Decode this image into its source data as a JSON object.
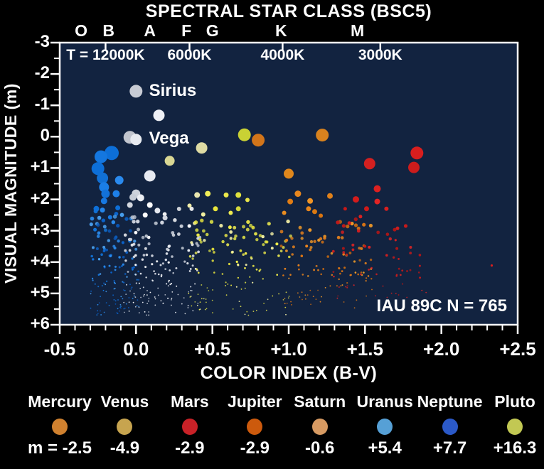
{
  "figure": {
    "title": "SPECTRAL STAR CLASS (BSC5)",
    "x_axis_label": "COLOR INDEX (B-V)",
    "y_axis_label": "VISUAL MAGNITUDE (m)"
  },
  "colors": {
    "background": "#000000",
    "plot_background": "#122340",
    "axis": "#ffffff",
    "text": "#ffffff"
  },
  "axes": {
    "x": {
      "min": -0.5,
      "max": 2.5,
      "major_step": 0.5,
      "minor_step": 0.1,
      "tick_labels": [
        {
          "label": "-0.5",
          "v": -0.5
        },
        {
          "label": "0.0",
          "v": 0.0
        },
        {
          "label": "+0.5",
          "v": 0.5
        },
        {
          "label": "+1.0",
          "v": 1.0
        },
        {
          "label": "+1.5",
          "v": 1.5
        },
        {
          "label": "+2.0",
          "v": 2.0
        },
        {
          "label": "+2.5",
          "v": 2.5
        }
      ]
    },
    "y": {
      "min": -3,
      "max": 6,
      "major_step": 1,
      "minor_step": 0.5,
      "tick_labels": [
        {
          "label": "-3",
          "v": -3
        },
        {
          "label": "-2",
          "v": -2
        },
        {
          "label": "-1",
          "v": -1
        },
        {
          "label": "0",
          "v": 0
        },
        {
          "label": "+1",
          "v": 1
        },
        {
          "label": "+2",
          "v": 2
        },
        {
          "label": "+3",
          "v": 3
        },
        {
          "label": "+4",
          "v": 4
        },
        {
          "label": "+5",
          "v": 5
        },
        {
          "label": "+6",
          "v": 6
        }
      ]
    },
    "spectral_classes": [
      {
        "label": "O",
        "bv": -0.36
      },
      {
        "label": "B",
        "bv": -0.18
      },
      {
        "label": "A",
        "bv": 0.09
      },
      {
        "label": "F",
        "bv": 0.33
      },
      {
        "label": "G",
        "bv": 0.5
      },
      {
        "label": "K",
        "bv": 0.95
      },
      {
        "label": "M",
        "bv": 1.45
      }
    ],
    "temperature_ticks": [
      {
        "label": "T = 12000K",
        "bv": -0.2
      },
      {
        "label": "6000K",
        "bv": 0.35
      },
      {
        "label": "4000K",
        "bv": 0.96
      },
      {
        "label": "3000K",
        "bv": 1.6
      }
    ]
  },
  "annotations": [
    {
      "text": "Sirius",
      "bv": 0.085,
      "mag": -1.45,
      "align": "left"
    },
    {
      "text": "Vega",
      "bv": 0.085,
      "mag": 0.06,
      "align": "left"
    },
    {
      "text": "IAU 89C N = 765",
      "bv": 2.43,
      "mag": 5.4,
      "align": "right"
    }
  ],
  "legend": {
    "prefix": "m =",
    "planets": [
      {
        "name": "Mercury",
        "color": "#d0812f",
        "value": "-2.5"
      },
      {
        "name": "Venus",
        "color": "#c7a44f",
        "value": "-4.9"
      },
      {
        "name": "Mars",
        "color": "#c92127",
        "value": "-2.9"
      },
      {
        "name": "Jupiter",
        "color": "#cc5a0d",
        "value": "-2.9"
      },
      {
        "name": "Saturn",
        "color": "#d79a62",
        "value": "-0.6"
      },
      {
        "name": "Uranus",
        "color": "#56a0d6",
        "value": "+5.4"
      },
      {
        "name": "Neptune",
        "color": "#2b59c8",
        "value": "+7.7"
      },
      {
        "name": "Pluto",
        "color": "#c2c853",
        "value": "+16.3"
      }
    ]
  },
  "chart_data": {
    "type": "scatter",
    "title": "SPECTRAL STAR CLASS (BSC5)",
    "xlabel": "COLOR INDEX (B-V)",
    "ylabel": "VISUAL MAGNITUDE (m)",
    "xlim": [
      -0.5,
      2.5
    ],
    "ylim": [
      6,
      -3
    ],
    "catalog_note": "IAU 89C N = 765",
    "n_stars": 765,
    "named_points": [
      {
        "name": "Sirius",
        "b_v": 0.0,
        "mag": -1.45
      },
      {
        "name": "Vega",
        "b_v": 0.0,
        "mag": 0.05
      }
    ],
    "bright_stars": [
      {
        "bv": 0.0,
        "mag": -1.45,
        "r": 9,
        "c": "#c7cbd4"
      },
      {
        "bv": 0.15,
        "mag": -0.68,
        "r": 8,
        "c": "#eef0f5"
      },
      {
        "bv": -0.04,
        "mag": 0.02,
        "r": 9,
        "c": "#c2c6cf"
      },
      {
        "bv": 0.0,
        "mag": 0.09,
        "r": 8,
        "c": "#e8ebf1"
      },
      {
        "bv": -0.16,
        "mag": 0.52,
        "r": 10,
        "c": "#0d6fd8"
      },
      {
        "bv": -0.23,
        "mag": 0.64,
        "r": 9,
        "c": "#1477e0"
      },
      {
        "bv": -0.25,
        "mag": 1.02,
        "r": 9,
        "c": "#0d6fd8"
      },
      {
        "bv": -0.22,
        "mag": 1.32,
        "r": 8,
        "c": "#1170d4"
      },
      {
        "bv": -0.21,
        "mag": 1.61,
        "r": 7,
        "c": "#1a7ee6"
      },
      {
        "bv": -0.2,
        "mag": 1.82,
        "r": 6,
        "c": "#1272da"
      },
      {
        "bv": -0.11,
        "mag": 1.39,
        "r": 6,
        "c": "#2a8aee"
      },
      {
        "bv": -0.13,
        "mag": 1.82,
        "r": 5,
        "c": "#1e80e8"
      },
      {
        "bv": -0.21,
        "mag": 2.05,
        "r": 4.5,
        "c": "#1778e2"
      },
      {
        "bv": -0.26,
        "mag": 2.3,
        "r": 4,
        "c": "#0d6fd8"
      },
      {
        "bv": -0.22,
        "mag": 2.34,
        "r": 3.5,
        "c": "#2586ec"
      },
      {
        "bv": -0.17,
        "mag": 2.57,
        "r": 3,
        "c": "#1778e2"
      },
      {
        "bv": -0.12,
        "mag": 2.27,
        "r": 3.5,
        "c": "#0d6fd8"
      },
      {
        "bv": 0.09,
        "mag": 1.25,
        "r": 8,
        "c": "#e7eaf1"
      },
      {
        "bv": 0.0,
        "mag": 1.82,
        "r": 6,
        "c": "#cdd2db"
      },
      {
        "bv": -0.02,
        "mag": 1.93,
        "r": 5,
        "c": "#c6ccd6"
      },
      {
        "bv": 0.03,
        "mag": 1.95,
        "r": 5,
        "c": "#eceef3"
      },
      {
        "bv": -0.04,
        "mag": 2.18,
        "r": 4,
        "c": "#d4d8e0"
      },
      {
        "bv": 0.09,
        "mag": 2.18,
        "r": 4,
        "c": "#ffffff"
      },
      {
        "bv": 0.14,
        "mag": 2.36,
        "r": 4,
        "c": "#e4e7ee"
      },
      {
        "bv": 0.19,
        "mag": 2.59,
        "r": 3.5,
        "c": "#d2d6df"
      },
      {
        "bv": 0.06,
        "mag": 2.5,
        "r": 3.5,
        "c": "#ffffff"
      },
      {
        "bv": 0.22,
        "mag": 0.77,
        "r": 7,
        "c": "#d9d794"
      },
      {
        "bv": 0.43,
        "mag": 0.36,
        "r": 8,
        "c": "#dedba4"
      },
      {
        "bv": 0.71,
        "mag": -0.06,
        "r": 9,
        "c": "#c9d134"
      },
      {
        "bv": 0.8,
        "mag": 0.11,
        "r": 9,
        "c": "#d2751a"
      },
      {
        "bv": 0.4,
        "mag": 1.86,
        "r": 4,
        "c": "#eae7b0"
      },
      {
        "bv": 0.47,
        "mag": 1.82,
        "r": 4,
        "c": "#f0ee58"
      },
      {
        "bv": 0.52,
        "mag": 2.3,
        "r": 3.5,
        "c": "#e8e43c"
      },
      {
        "bv": 0.59,
        "mag": 1.86,
        "r": 3.5,
        "c": "#ece84a"
      },
      {
        "bv": 0.67,
        "mag": 1.86,
        "r": 4,
        "c": "#dfe23e"
      },
      {
        "bv": 0.67,
        "mag": 2.3,
        "r": 3.5,
        "c": "#d4d93c"
      },
      {
        "bv": 0.73,
        "mag": 2.02,
        "r": 3,
        "c": "#e8e44a"
      },
      {
        "bv": 0.62,
        "mag": 2.43,
        "r": 3,
        "c": "#eeeb50"
      },
      {
        "bv": 0.44,
        "mag": 2.48,
        "r": 3,
        "c": "#f2efa0"
      },
      {
        "bv": 0.35,
        "mag": 2.2,
        "r": 3,
        "c": "#f0eda8"
      },
      {
        "bv": 1.22,
        "mag": -0.05,
        "r": 9,
        "c": "#d8821e"
      },
      {
        "bv": 1.0,
        "mag": 1.18,
        "r": 7,
        "c": "#e0871c"
      },
      {
        "bv": 1.06,
        "mag": 1.82,
        "r": 4.5,
        "c": "#e8871e"
      },
      {
        "bv": 1.01,
        "mag": 2.07,
        "r": 4,
        "c": "#e07c14"
      },
      {
        "bv": 1.14,
        "mag": 2.05,
        "r": 4,
        "c": "#ef9426"
      },
      {
        "bv": 1.13,
        "mag": 2.3,
        "r": 3.5,
        "c": "#e8861c"
      },
      {
        "bv": 1.17,
        "mag": 2.39,
        "r": 3.5,
        "c": "#db7a12"
      },
      {
        "bv": 1.27,
        "mag": 1.89,
        "r": 4,
        "c": "#e0811a"
      },
      {
        "bv": 0.97,
        "mag": 2.43,
        "r": 3,
        "c": "#ea8d20"
      },
      {
        "bv": 1.21,
        "mag": 2.52,
        "r": 3,
        "c": "#d97410"
      },
      {
        "bv": 1.53,
        "mag": 0.86,
        "r": 8,
        "c": "#d42020"
      },
      {
        "bv": 1.84,
        "mag": 0.52,
        "r": 9,
        "c": "#d81e1e"
      },
      {
        "bv": 1.82,
        "mag": 0.98,
        "r": 8,
        "c": "#cc1c1c"
      },
      {
        "bv": 1.58,
        "mag": 1.66,
        "r": 5,
        "c": "#dc2020"
      },
      {
        "bv": 1.44,
        "mag": 2.0,
        "r": 4.5,
        "c": "#d41c1c"
      },
      {
        "bv": 1.58,
        "mag": 2.07,
        "r": 4,
        "c": "#e32424"
      },
      {
        "bv": 1.51,
        "mag": 2.3,
        "r": 3.5,
        "c": "#ce1a1a"
      },
      {
        "bv": 1.64,
        "mag": 2.3,
        "r": 3,
        "c": "#d82020"
      },
      {
        "bv": 1.37,
        "mag": 2.3,
        "r": 2.5,
        "c": "#c81818"
      },
      {
        "bv": 1.47,
        "mag": 2.55,
        "r": 2.5,
        "c": "#da2222"
      },
      {
        "bv": 2.33,
        "mag": 4.11,
        "r": 1.6,
        "c": "#d81e1e"
      },
      {
        "bv": 1.86,
        "mag": 4.5,
        "r": 1.4,
        "c": "#c81818"
      },
      {
        "bv": 1.7,
        "mag": 3.3,
        "r": 1.6,
        "c": "#d42020"
      },
      {
        "bv": 1.72,
        "mag": 3.9,
        "r": 1.4,
        "c": "#cc1c1c"
      }
    ],
    "field_groups": [
      {
        "name": "blue",
        "count": 130,
        "bv_min": -0.3,
        "bv_max": 0.02,
        "bv_pow": 1.0,
        "mag_min": 2.2,
        "mag_max": 5.7,
        "mag_pow": 0.72,
        "palette": [
          "#0b65d0",
          "#1278e2",
          "#2b8df0",
          "#4aa2f2",
          "#0a57b8"
        ]
      },
      {
        "name": "white",
        "count": 150,
        "bv_min": -0.08,
        "bv_max": 0.42,
        "bv_pow": 1.25,
        "mag_min": 2.3,
        "mag_max": 5.7,
        "mag_pow": 0.75,
        "palette": [
          "#ffffff",
          "#e9ecf2",
          "#d7dbe4",
          "#c3c9d4"
        ]
      },
      {
        "name": "yellow",
        "count": 130,
        "bv_min": 0.34,
        "bv_max": 1.02,
        "bv_pow": 1.0,
        "mag_min": 2.5,
        "mag_max": 5.7,
        "mag_pow": 0.78,
        "palette": [
          "#f2ee49",
          "#e8e43c",
          "#d9d94f",
          "#f5f2a6",
          "#c9cf45"
        ]
      },
      {
        "name": "orange",
        "count": 105,
        "bv_min": 0.95,
        "bv_max": 1.55,
        "bv_pow": 1.0,
        "mag_min": 2.6,
        "mag_max": 5.5,
        "mag_pow": 0.8,
        "palette": [
          "#e8821c",
          "#d97414",
          "#f09a28",
          "#c96a10"
        ]
      },
      {
        "name": "red",
        "count": 58,
        "bv_min": 1.28,
        "bv_max": 1.92,
        "bv_pow": 1.1,
        "mag_min": 2.6,
        "mag_max": 5.2,
        "mag_pow": 0.85,
        "palette": [
          "#d81e1e",
          "#c51a1a",
          "#e32424",
          "#b31616"
        ]
      }
    ],
    "planets": [
      {
        "name": "Mercury",
        "mag": -2.5
      },
      {
        "name": "Venus",
        "mag": -4.9
      },
      {
        "name": "Mars",
        "mag": -2.9
      },
      {
        "name": "Jupiter",
        "mag": -2.9
      },
      {
        "name": "Saturn",
        "mag": -0.6
      },
      {
        "name": "Uranus",
        "mag": 5.4
      },
      {
        "name": "Neptune",
        "mag": 7.7
      },
      {
        "name": "Pluto",
        "mag": 16.3
      }
    ]
  }
}
